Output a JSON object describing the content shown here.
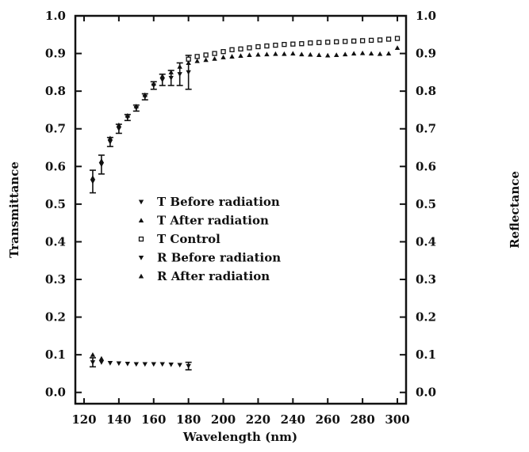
{
  "chart_data": {
    "type": "scatter",
    "xlabel": "Wavelength (nm)",
    "ylabel_left": "Transmittance",
    "ylabel_right": "Reflectance",
    "xlim": [
      115,
      305
    ],
    "ylim": [
      -0.03,
      1.0
    ],
    "x_ticks": [
      120,
      140,
      160,
      180,
      200,
      220,
      240,
      260,
      280,
      300
    ],
    "y_ticks": [
      0.0,
      0.1,
      0.2,
      0.3,
      0.4,
      0.5,
      0.6,
      0.7,
      0.8,
      0.9,
      1.0
    ],
    "x_tick_labels": [
      "120",
      "140",
      "160",
      "180",
      "200",
      "220",
      "240",
      "260",
      "280",
      "300"
    ],
    "y_tick_labels": [
      "0.0",
      "0.1",
      "0.2",
      "0.3",
      "0.4",
      "0.5",
      "0.6",
      "0.7",
      "0.8",
      "0.9",
      "1.0"
    ],
    "grid": false,
    "legend_position": "center-left",
    "series": [
      {
        "name": "T Before radiation",
        "marker": "triangle-down",
        "x": [
          125,
          130,
          135,
          140,
          145,
          150,
          155,
          160,
          165,
          170,
          175,
          180
        ],
        "y": [
          0.56,
          0.605,
          0.665,
          0.7,
          0.73,
          0.755,
          0.785,
          0.815,
          0.83,
          0.835,
          0.845,
          0.85
        ],
        "err": [
          0.03,
          0.025,
          0.012,
          0.012,
          0.008,
          0.008,
          0.008,
          0.01,
          0.015,
          0.02,
          0.03,
          0.045
        ]
      },
      {
        "name": "T After radiation",
        "marker": "triangle-up",
        "x": [
          125,
          130,
          135,
          140,
          145,
          150,
          155,
          160,
          165,
          170,
          175,
          180,
          185,
          190,
          195,
          200,
          205,
          210,
          215,
          220,
          225,
          230,
          235,
          240,
          245,
          250,
          255,
          260,
          265,
          270,
          275,
          280,
          285,
          290,
          295,
          300
        ],
        "y": [
          0.57,
          0.615,
          0.675,
          0.71,
          0.735,
          0.76,
          0.79,
          0.82,
          0.84,
          0.85,
          0.865,
          0.875,
          0.88,
          0.883,
          0.886,
          0.89,
          0.892,
          0.894,
          0.896,
          0.897,
          0.898,
          0.899,
          0.899,
          0.9,
          0.898,
          0.897,
          0.896,
          0.895,
          0.896,
          0.898,
          0.9,
          0.901,
          0.9,
          0.899,
          0.9,
          0.915
        ]
      },
      {
        "name": "T Control",
        "marker": "square-open",
        "x": [
          180,
          185,
          190,
          195,
          200,
          205,
          210,
          215,
          220,
          225,
          230,
          235,
          240,
          245,
          250,
          255,
          260,
          265,
          270,
          275,
          280,
          285,
          290,
          295,
          300
        ],
        "y": [
          0.885,
          0.892,
          0.896,
          0.9,
          0.905,
          0.91,
          0.912,
          0.915,
          0.918,
          0.92,
          0.922,
          0.924,
          0.925,
          0.926,
          0.928,
          0.929,
          0.93,
          0.931,
          0.932,
          0.933,
          0.934,
          0.935,
          0.936,
          0.938,
          0.94
        ]
      },
      {
        "name": "R Before radiation",
        "marker": "triangle-down",
        "x": [
          125,
          130,
          135,
          140,
          145,
          150,
          155,
          160,
          165,
          170,
          175,
          180
        ],
        "y": [
          0.08,
          0.08,
          0.078,
          0.077,
          0.076,
          0.075,
          0.075,
          0.075,
          0.075,
          0.074,
          0.073,
          0.07
        ],
        "err": [
          0.012,
          0,
          0,
          0,
          0,
          0,
          0,
          0,
          0,
          0,
          0,
          0.01
        ]
      },
      {
        "name": "R After radiation",
        "marker": "triangle-up",
        "x": [
          125,
          130
        ],
        "y": [
          0.1,
          0.09
        ]
      }
    ]
  }
}
